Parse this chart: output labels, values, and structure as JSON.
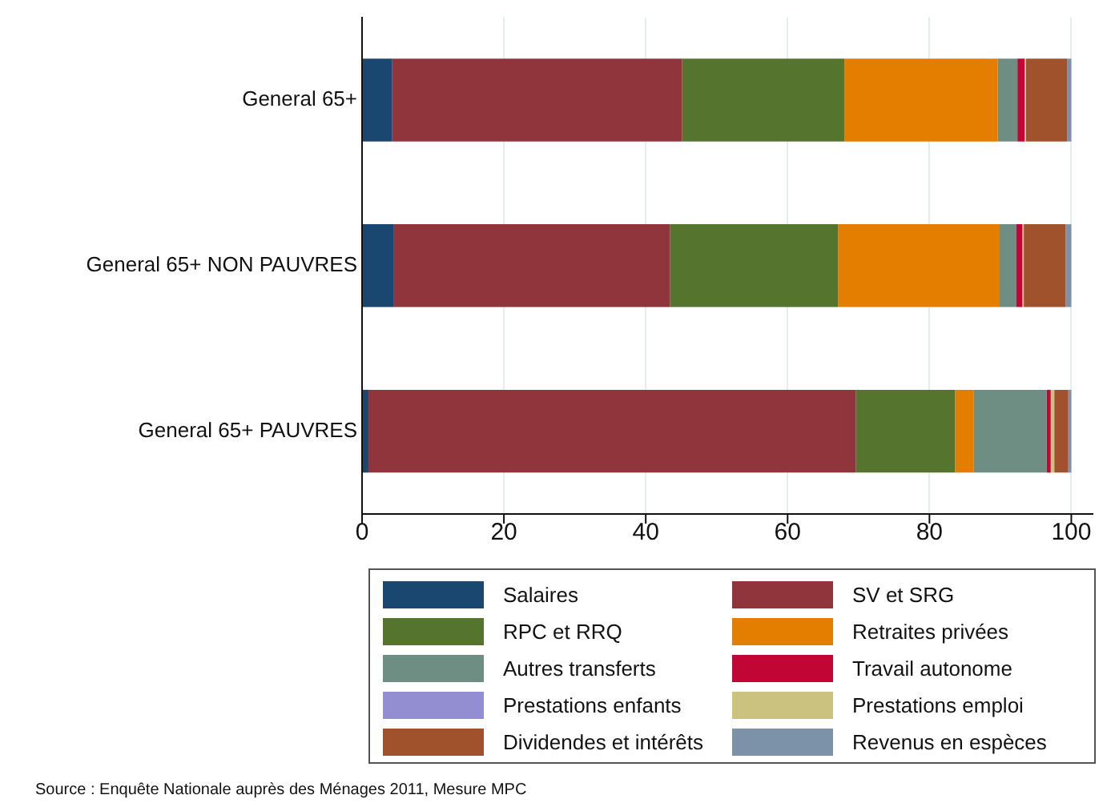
{
  "chart_data": {
    "type": "bar",
    "orientation": "horizontal",
    "stacked": true,
    "categories": [
      "General 65+",
      "General 65+ NON PAUVRES",
      "General 65+ PAUVRES"
    ],
    "series": [
      {
        "name": "Salaires",
        "color": "#1a476f",
        "values": [
          4.2,
          4.5,
          0.9
        ]
      },
      {
        "name": "SV et SRG",
        "color": "#90353b",
        "values": [
          40.9,
          38.9,
          68.7
        ]
      },
      {
        "name": "RPC et RRQ",
        "color": "#55752f",
        "values": [
          22.9,
          23.7,
          14.0
        ]
      },
      {
        "name": "Retraites privées",
        "color": "#e37e00",
        "values": [
          21.6,
          22.8,
          2.6
        ]
      },
      {
        "name": "Autres transferts",
        "color": "#6e8e84",
        "values": [
          2.8,
          2.3,
          10.3
        ]
      },
      {
        "name": "Travail autonome",
        "color": "#c10534",
        "values": [
          1.0,
          0.9,
          0.6
        ]
      },
      {
        "name": "Prestations enfants",
        "color": "#938dd2",
        "values": [
          0,
          0,
          0
        ]
      },
      {
        "name": "Prestations emploi",
        "color": "#cac27e",
        "values": [
          0.2,
          0.2,
          0.5
        ]
      },
      {
        "name": "Dividendes et intérêts",
        "color": "#a0522d",
        "values": [
          5.8,
          5.9,
          1.9
        ]
      },
      {
        "name": "Revenus en espèces",
        "color": "#7b92a8",
        "values": [
          0.6,
          0.8,
          0.5
        ]
      }
    ],
    "xlim": [
      0,
      103
    ],
    "xticks": [
      0,
      20,
      40,
      60,
      80,
      100
    ],
    "grid": "x",
    "legend": "bottom",
    "annotations": [
      "Source : Enquête Nationale auprès des Ménages 2011, Mesure MPC"
    ]
  }
}
